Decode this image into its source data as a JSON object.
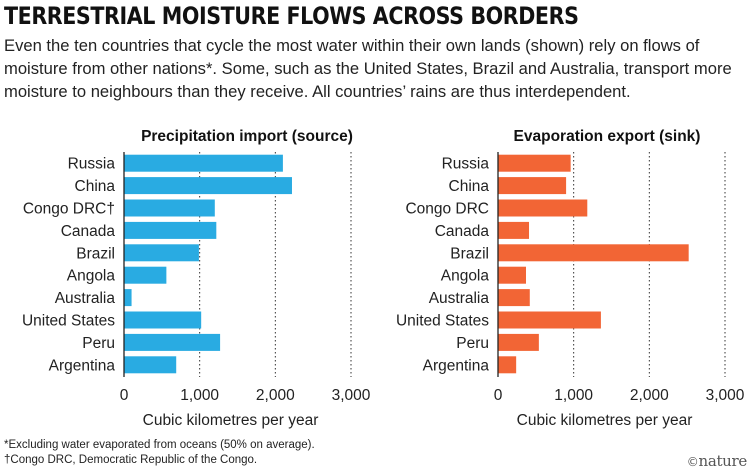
{
  "title": "TERRESTRIAL MOISTURE FLOWS ACROSS BORDERS",
  "subtitle": "Even the ten countries that cycle the most water within their own lands (shown) rely on flows of moisture from other nations*. Some, such as the United States, Brazil and Australia, transport more moisture to neighbours than they receive. All countries’ rains are thus interdependent.",
  "footnotes": {
    "asterisk": "*Excluding water evaporated from oceans (50% on average).",
    "dagger": "†Congo DRC, Democratic Republic of the Congo."
  },
  "logo": {
    "symbol": "©",
    "text": "nature"
  },
  "chart_data": [
    {
      "type": "bar",
      "orientation": "horizontal",
      "title": "Precipitation import (source)",
      "xlabel": "Cubic kilometres per year",
      "categories": [
        "Russia",
        "China",
        "Congo DRC†",
        "Canada",
        "Brazil",
        "Angola",
        "Australia",
        "United States",
        "Peru",
        "Argentina"
      ],
      "values": [
        2100,
        2220,
        1200,
        1220,
        990,
        560,
        100,
        1020,
        1270,
        690
      ],
      "xlim": [
        0,
        3000
      ],
      "xticks": [
        0,
        1000,
        2000,
        3000
      ],
      "xtick_labels": [
        "0",
        "1,000",
        "2,000",
        "3,000"
      ],
      "grid": "dotted vertical",
      "color": "#29abe2"
    },
    {
      "type": "bar",
      "orientation": "horizontal",
      "title": "Evaporation export (sink)",
      "xlabel": "Cubic kilometres per year",
      "categories": [
        "Russia",
        "China",
        "Congo DRC",
        "Canada",
        "Brazil",
        "Angola",
        "Australia",
        "United States",
        "Peru",
        "Argentina"
      ],
      "values": [
        960,
        900,
        1180,
        410,
        2520,
        370,
        420,
        1360,
        540,
        240
      ],
      "xlim": [
        0,
        3000
      ],
      "xticks": [
        0,
        1000,
        2000,
        3000
      ],
      "xtick_labels": [
        "0",
        "1,000",
        "2,000",
        "3,000"
      ],
      "grid": "dotted vertical",
      "color": "#f26535"
    }
  ]
}
